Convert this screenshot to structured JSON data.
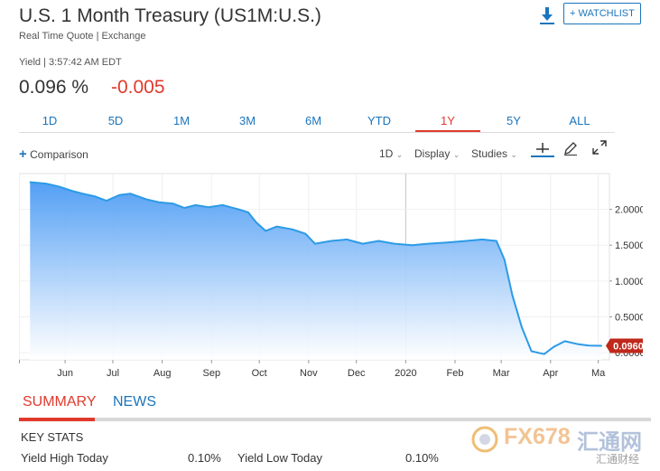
{
  "header": {
    "title": "U.S. 1 Month Treasury (US1M:U.S.)",
    "subtitle": "Real Time Quote | Exchange",
    "watchlist_label": "+ WATCHLIST"
  },
  "quote": {
    "label": "Yield | 3:57:42 AM EDT",
    "value": "0.096 %",
    "change": "-0.005",
    "change_color": "#e03a2d"
  },
  "ranges": [
    "1D",
    "5D",
    "1M",
    "3M",
    "6M",
    "YTD",
    "1Y",
    "5Y",
    "ALL"
  ],
  "active_range": "1Y",
  "toolbar": {
    "comparison_label": "Comparison",
    "interval_label": "1D",
    "display_label": "Display",
    "studies_label": "Studies"
  },
  "chart_data": {
    "type": "area",
    "x_ticks": [
      "Jun",
      "Jul",
      "Aug",
      "Sep",
      "Oct",
      "Nov",
      "Dec",
      "2020",
      "Feb",
      "Mar",
      "Apr",
      "Ma"
    ],
    "y_ticks": [
      "2.0000",
      "1.5000",
      "1.0000",
      "0.5000",
      "0.0000"
    ],
    "ylim": [
      -0.1,
      2.5
    ],
    "last_value_label": "0.0960",
    "line_color": "#2c9be6",
    "fill_color": "#4a9af4",
    "last_label_color": "#c0281b",
    "series": [
      {
        "values": [
          {
            "x": "2019-05-10",
            "y": 2.38
          },
          {
            "x": "2019-05-20",
            "y": 2.36
          },
          {
            "x": "2019-05-28",
            "y": 2.32
          },
          {
            "x": "2019-06-05",
            "y": 2.26
          },
          {
            "x": "2019-06-12",
            "y": 2.22
          },
          {
            "x": "2019-06-20",
            "y": 2.18
          },
          {
            "x": "2019-06-27",
            "y": 2.12
          },
          {
            "x": "2019-07-05",
            "y": 2.2
          },
          {
            "x": "2019-07-12",
            "y": 2.22
          },
          {
            "x": "2019-07-22",
            "y": 2.14
          },
          {
            "x": "2019-07-30",
            "y": 2.1
          },
          {
            "x": "2019-08-08",
            "y": 2.08
          },
          {
            "x": "2019-08-15",
            "y": 2.02
          },
          {
            "x": "2019-08-22",
            "y": 2.06
          },
          {
            "x": "2019-08-30",
            "y": 2.03
          },
          {
            "x": "2019-09-08",
            "y": 2.06
          },
          {
            "x": "2019-09-18",
            "y": 2.0
          },
          {
            "x": "2019-09-24",
            "y": 1.96
          },
          {
            "x": "2019-09-29",
            "y": 1.82
          },
          {
            "x": "2019-10-05",
            "y": 1.7
          },
          {
            "x": "2019-10-12",
            "y": 1.76
          },
          {
            "x": "2019-10-22",
            "y": 1.72
          },
          {
            "x": "2019-10-30",
            "y": 1.66
          },
          {
            "x": "2019-11-05",
            "y": 1.52
          },
          {
            "x": "2019-11-15",
            "y": 1.56
          },
          {
            "x": "2019-11-25",
            "y": 1.58
          },
          {
            "x": "2019-12-05",
            "y": 1.52
          },
          {
            "x": "2019-12-15",
            "y": 1.56
          },
          {
            "x": "2019-12-25",
            "y": 1.52
          },
          {
            "x": "2020-01-05",
            "y": 1.5
          },
          {
            "x": "2020-01-15",
            "y": 1.52
          },
          {
            "x": "2020-01-28",
            "y": 1.54
          },
          {
            "x": "2020-02-08",
            "y": 1.56
          },
          {
            "x": "2020-02-18",
            "y": 1.58
          },
          {
            "x": "2020-02-27",
            "y": 1.56
          },
          {
            "x": "2020-03-03",
            "y": 1.3
          },
          {
            "x": "2020-03-08",
            "y": 0.8
          },
          {
            "x": "2020-03-14",
            "y": 0.35
          },
          {
            "x": "2020-03-20",
            "y": 0.02
          },
          {
            "x": "2020-03-28",
            "y": -0.02
          },
          {
            "x": "2020-04-03",
            "y": 0.08
          },
          {
            "x": "2020-04-10",
            "y": 0.16
          },
          {
            "x": "2020-04-18",
            "y": 0.12
          },
          {
            "x": "2020-04-25",
            "y": 0.1
          },
          {
            "x": "2020-05-03",
            "y": 0.096
          }
        ]
      }
    ]
  },
  "summary_tabs": [
    "SUMMARY",
    "NEWS"
  ],
  "key_stats": {
    "title": "KEY STATS",
    "items": [
      {
        "label": "Yield High Today",
        "value": "0.10%"
      },
      {
        "label": "Yield Low Today",
        "value": "0.10%"
      }
    ]
  },
  "watermark": {
    "text": "FX678",
    "cn": "汇通网",
    "sub_cn": "汇通财经"
  }
}
